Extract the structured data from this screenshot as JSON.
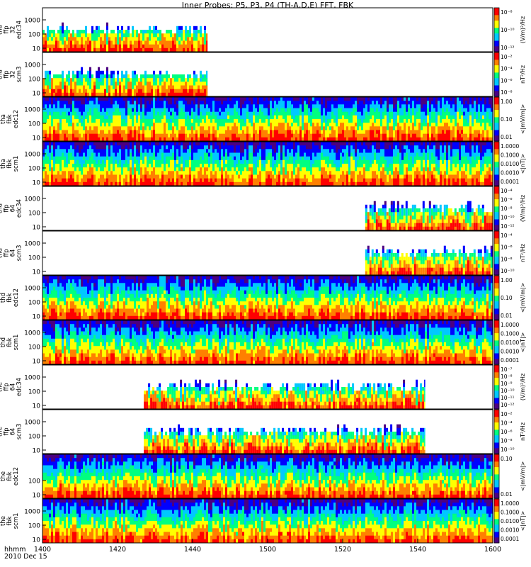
{
  "title": "Inner Probes: P5, P3, P4 (TH-A,D,E) FFT, FBK",
  "footer": {
    "line1": "hhmm",
    "line2": "2010 Dec 15"
  },
  "colors": {
    "frame": "#000000",
    "background": "#ffffff"
  },
  "chart_data": {
    "type": "heatmap",
    "title": "Inner Probes: P5, P3, P4 (TH-A,D,E) FFT, FBK",
    "x_ticks": [
      "1400",
      "1420",
      "1440",
      "1500",
      "1520",
      "1540",
      "1600"
    ],
    "x_range": [
      "1400",
      "1600"
    ],
    "colormap": [
      "#4b0082",
      "#0000ff",
      "#00c8ff",
      "#00ff80",
      "#ffff00",
      "#ff8000",
      "#ff0000"
    ],
    "panels": [
      {
        "id": "tha_ffp_32_edc34",
        "ylabel": [
          "tha",
          "ffp",
          "32",
          "edc34"
        ],
        "yticks": [
          "1000",
          "100",
          "10"
        ],
        "cbar_ticks": [
          "10⁻⁸",
          "10⁻¹⁰",
          "10⁻¹²"
        ],
        "unit": "(V/m)²/Hz",
        "data_span": [
          "1400",
          "1444"
        ]
      },
      {
        "id": "tha_ffp_32_scm3",
        "ylabel": [
          "tha",
          "ffp",
          "32",
          "scm3"
        ],
        "yticks": [
          "1000",
          "100",
          "10"
        ],
        "cbar_ticks": [
          "10⁻²",
          "10⁻⁴",
          "10⁻⁶",
          "10⁻⁸"
        ],
        "unit": "nT²/Hz",
        "data_span": [
          "1400",
          "1444"
        ]
      },
      {
        "id": "tha_fbk_edc12",
        "ylabel": [
          "tha",
          "fbk",
          "edc12"
        ],
        "yticks": [
          "1000",
          "100",
          "10"
        ],
        "cbar_ticks": [
          "1.00",
          "0.10",
          "0.01"
        ],
        "unit": "<|mV/m|>",
        "data_span": [
          "1400",
          "1600"
        ]
      },
      {
        "id": "tha_fbk_scm1",
        "ylabel": [
          "tha",
          "fbk",
          "scm1"
        ],
        "yticks": [
          "1000",
          "100",
          "10"
        ],
        "cbar_ticks": [
          "1.0000",
          "0.1000",
          "0.0100",
          "0.0010",
          "0.0001"
        ],
        "unit": "<|nT|>",
        "data_span": [
          "1400",
          "1600"
        ]
      },
      {
        "id": "thd_ffp_64_edc34",
        "ylabel": [
          "thd",
          "ffp",
          "64",
          "edc34"
        ],
        "yticks": [
          "1000",
          "100",
          "10"
        ],
        "cbar_ticks": [
          "10⁻⁴",
          "10⁻⁶",
          "10⁻⁸",
          "10⁻¹⁰",
          "10⁻¹²"
        ],
        "unit": "(V/m)²/Hz",
        "data_span": [
          "1526",
          "1600"
        ]
      },
      {
        "id": "thd_ffp_64_scm3",
        "ylabel": [
          "thd",
          "ffp",
          "64",
          "scm3"
        ],
        "yticks": [
          "1000",
          "100",
          "10"
        ],
        "cbar_ticks": [
          "10⁻⁴",
          "10⁻⁶",
          "10⁻⁸",
          "10⁻¹⁰"
        ],
        "unit": "nT²/Hz",
        "data_span": [
          "1526",
          "1600"
        ]
      },
      {
        "id": "thd_fbk_edc12",
        "ylabel": [
          "thd",
          "fbk",
          "edc12"
        ],
        "yticks": [
          "1000",
          "100",
          "10"
        ],
        "cbar_ticks": [
          "1.00",
          "0.10",
          "0.01"
        ],
        "unit": "<|mV/m|>",
        "data_span": [
          "1400",
          "1600"
        ]
      },
      {
        "id": "thd_fbk_scm1",
        "ylabel": [
          "thd",
          "fbk",
          "scm1"
        ],
        "yticks": [
          "1000",
          "100",
          "10"
        ],
        "cbar_ticks": [
          "1.0000",
          "0.1000",
          "0.0100",
          "0.0010",
          "0.0001"
        ],
        "unit": "<|nT|>",
        "data_span": [
          "1400",
          "1600"
        ]
      },
      {
        "id": "the_ffp_64_edc34",
        "ylabel": [
          "the",
          "ffp",
          "64",
          "edc34"
        ],
        "yticks": [
          "1000",
          "100",
          "10"
        ],
        "cbar_ticks": [
          "10⁻⁷",
          "10⁻⁸",
          "10⁻⁹",
          "10⁻¹⁰",
          "10⁻¹¹",
          "10⁻¹²"
        ],
        "unit": "(V/m)²/Hz",
        "data_span": [
          "1427",
          "1542"
        ]
      },
      {
        "id": "the_ffp_64_scm3",
        "ylabel": [
          "the",
          "ffp",
          "64",
          "scm3"
        ],
        "yticks": [
          "1000",
          "100",
          "10"
        ],
        "cbar_ticks": [
          "10⁻²",
          "10⁻⁴",
          "10⁻⁶",
          "10⁻⁸",
          "10⁻¹⁰"
        ],
        "unit": "nT²/Hz",
        "data_span": [
          "1427",
          "1542"
        ]
      },
      {
        "id": "the_fbk_edc12",
        "ylabel": [
          "the",
          "fbk",
          "edc12"
        ],
        "yticks": [
          "100",
          "10"
        ],
        "cbar_ticks": [
          "0.10",
          "0.01"
        ],
        "unit": "<|mV/m|>",
        "data_span": [
          "1400",
          "1600"
        ]
      },
      {
        "id": "the_fbk_scm1",
        "ylabel": [
          "the",
          "fbk",
          "scm1"
        ],
        "yticks": [
          "1000",
          "100",
          "10"
        ],
        "cbar_ticks": [
          "1.0000",
          "0.1000",
          "0.0100",
          "0.0010",
          "0.0001"
        ],
        "unit": "<|nT|>",
        "data_span": [
          "1400",
          "1600"
        ]
      }
    ]
  }
}
